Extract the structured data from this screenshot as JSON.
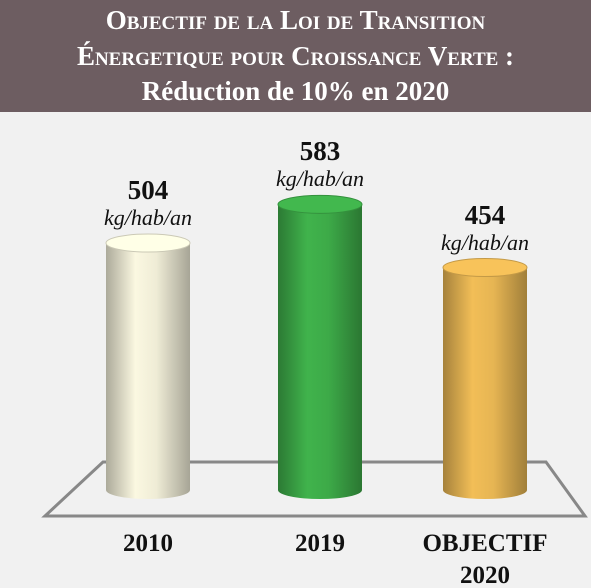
{
  "chart_data": {
    "type": "cylinder-bar",
    "title": "Objectif de la Loi de Transition Énergetique pour Croissance Verte :",
    "subtitle": "Réduction de 10% en 2020",
    "categories": [
      "2010",
      "2019",
      "OBJECTIF 2020"
    ],
    "values": [
      504,
      583,
      454
    ],
    "unit": "kg/hab/an",
    "colors": [
      "#efecd6",
      "#3daa48",
      "#e6b553"
    ]
  }
}
